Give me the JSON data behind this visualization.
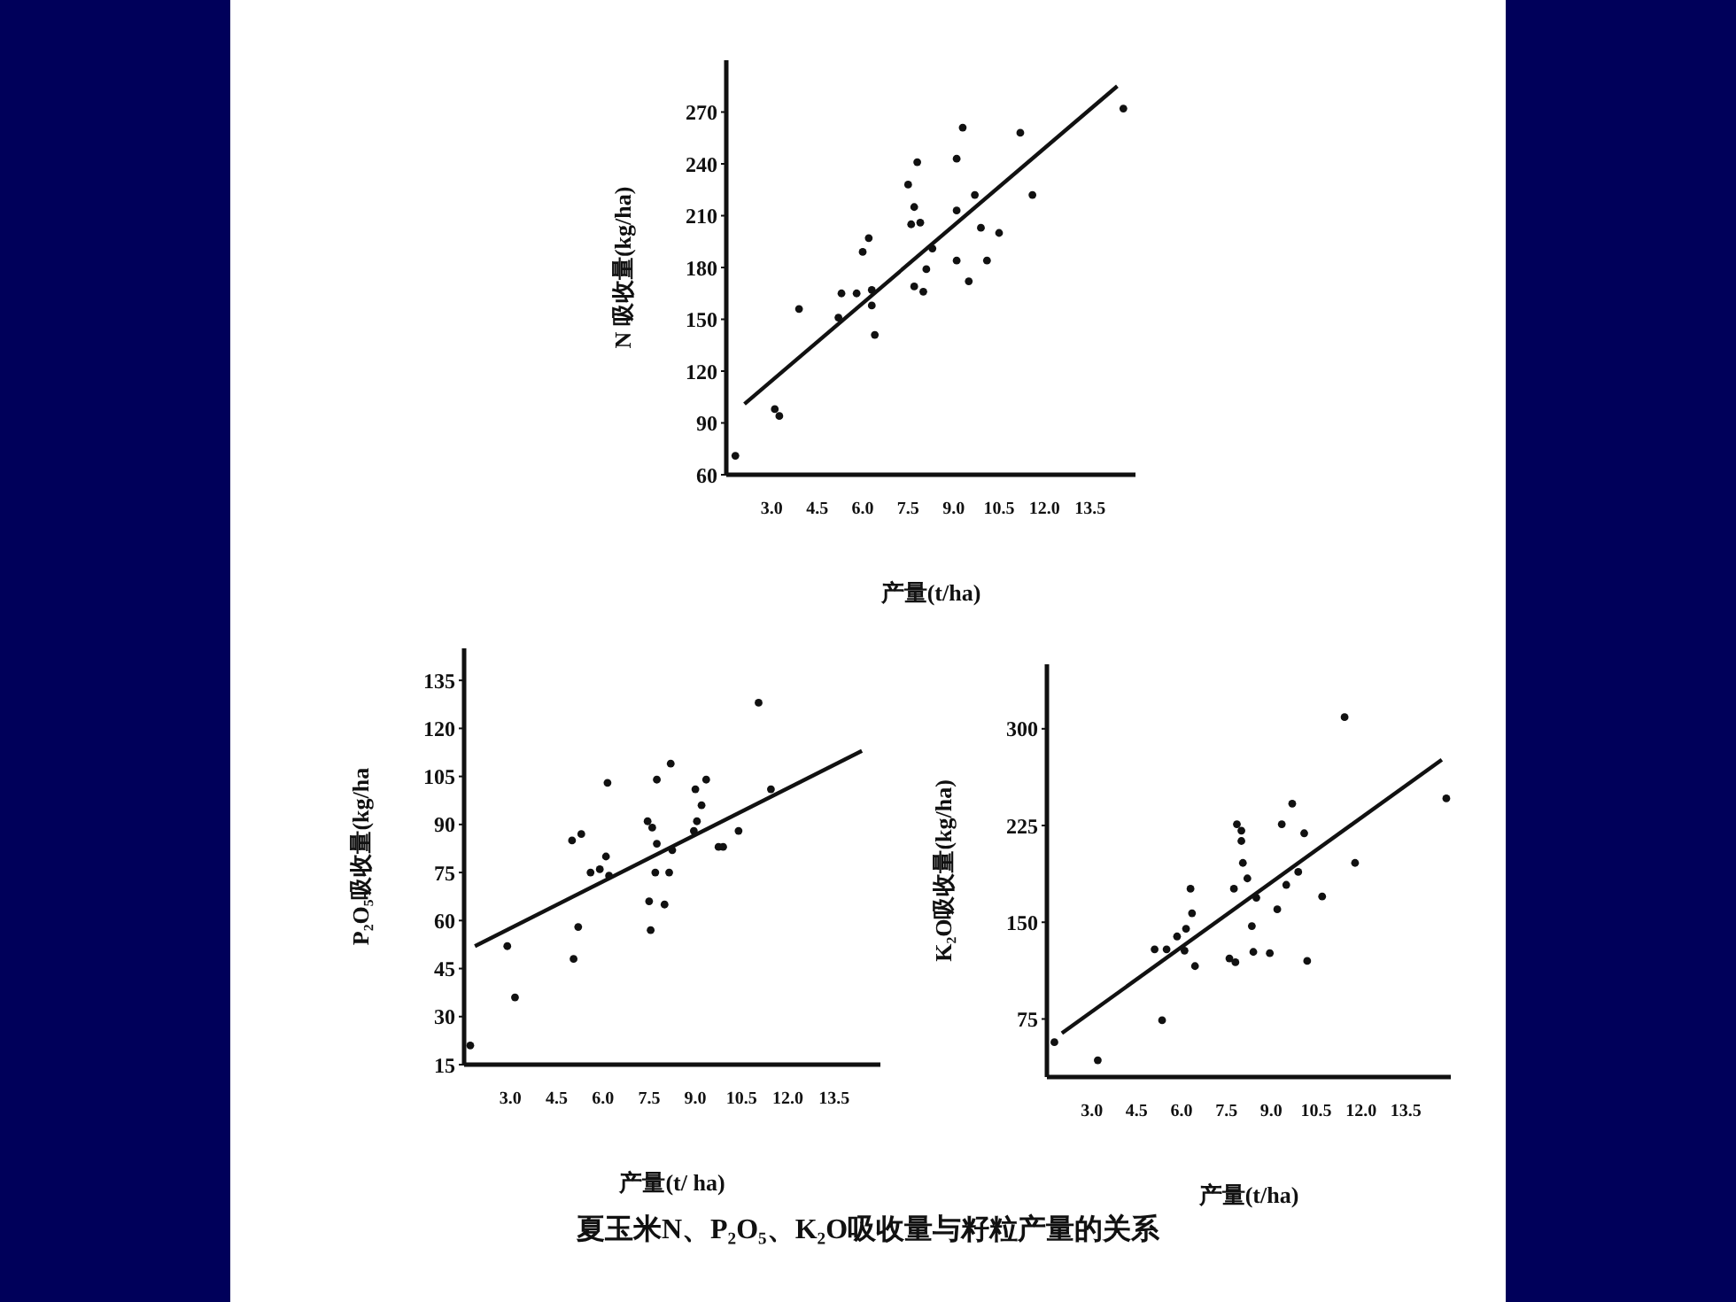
{
  "chart_data": [
    {
      "type": "scatter",
      "ylabel": "N 吸收量(kg/ha)",
      "xlabel": "产量(t/ha)",
      "xlim": [
        1.5,
        15
      ],
      "xticks": [
        {
          "value": 3,
          "label": "3.0"
        },
        {
          "value": 4.5,
          "label": "4.5"
        },
        {
          "value": 6,
          "label": "6.0"
        },
        {
          "value": 7.5,
          "label": "7.5"
        },
        {
          "value": 9,
          "label": "9.0"
        },
        {
          "value": 10.5,
          "label": "10.5"
        },
        {
          "value": 12,
          "label": "12.0"
        },
        {
          "value": 13.5,
          "label": "13.5"
        }
      ],
      "ylim": [
        60,
        300
      ],
      "yticks": [
        60,
        90,
        120,
        150,
        180,
        210,
        240,
        270
      ],
      "series": [
        {
          "color": "#111111",
          "marker": "circle",
          "x": [
            1.8,
            3.1,
            3.25,
            3.9,
            5.2,
            5.3,
            5.8,
            6.0,
            6.2,
            6.3,
            6.3,
            6.4,
            7.5,
            7.7,
            7.6,
            7.8,
            7.9,
            7.7,
            8.0,
            8.1,
            8.3,
            9.1,
            9.1,
            9.3,
            9.1,
            9.5,
            9.7,
            9.9,
            10.1,
            10.5,
            11.2,
            11.6,
            14.6
          ],
          "values": [
            71,
            98,
            94,
            156,
            151,
            165,
            165,
            189,
            197,
            167,
            158,
            141,
            228,
            215,
            205,
            241,
            206,
            169,
            166,
            179,
            191,
            213,
            243,
            261,
            184,
            172,
            222,
            203,
            184,
            200,
            258,
            222,
            272
          ]
        },
        {
          "type": "line",
          "marker": "none",
          "color": "#111111",
          "x": [
            2.1,
            14.4
          ],
          "values": [
            101,
            285
          ]
        }
      ]
    },
    {
      "type": "scatter",
      "ylabel": "P₂O₅吸收量(kg/ha",
      "xlabel": "产量(t/ ha)",
      "xlim": [
        1.5,
        15
      ],
      "xticks": [
        {
          "value": 3,
          "label": "3.0"
        },
        {
          "value": 4.5,
          "label": "4.5"
        },
        {
          "value": 6,
          "label": "6.0"
        },
        {
          "value": 7.5,
          "label": "7.5"
        },
        {
          "value": 9,
          "label": "9.0"
        },
        {
          "value": 10.5,
          "label": "10.5"
        },
        {
          "value": 12,
          "label": "12.0"
        },
        {
          "value": 13.5,
          "label": "13.5"
        }
      ],
      "ylim": [
        15,
        145
      ],
      "yticks": [
        15,
        30,
        45,
        60,
        75,
        90,
        105,
        120,
        135
      ],
      "series": [
        {
          "color": "#111111",
          "marker": "circle",
          "x": [
            1.7,
            2.9,
            3.15,
            5.0,
            5.05,
            5.2,
            5.3,
            5.6,
            5.9,
            6.1,
            6.15,
            6.2,
            7.45,
            7.6,
            7.5,
            7.55,
            7.75,
            7.75,
            7.7,
            8.0,
            8.15,
            8.2,
            8.25,
            9.0,
            9.05,
            8.95,
            9.2,
            9.35,
            9.75,
            9.9,
            10.4,
            11.05,
            11.45
          ],
          "values": [
            21,
            52,
            36,
            85,
            48,
            58,
            87,
            75,
            76,
            80,
            103,
            74,
            91,
            89,
            66,
            57,
            104,
            84,
            75,
            65,
            75,
            109,
            82,
            101,
            91,
            88,
            96,
            104,
            83,
            83,
            88,
            128,
            101
          ]
        },
        {
          "type": "line",
          "marker": "none",
          "color": "#111111",
          "x": [
            1.85,
            14.4
          ],
          "values": [
            52,
            113
          ]
        }
      ]
    },
    {
      "type": "scatter",
      "ylabel": "K₂O吸收量(kg/ha)",
      "xlabel": "产量(t/ha)",
      "xlim": [
        1.5,
        15
      ],
      "xticks": [
        {
          "value": 3,
          "label": "3.0"
        },
        {
          "value": 4.5,
          "label": "4.5"
        },
        {
          "value": 6,
          "label": "6.0"
        },
        {
          "value": 7.5,
          "label": "7.5"
        },
        {
          "value": 9,
          "label": "9.0"
        },
        {
          "value": 10.5,
          "label": "10.5"
        },
        {
          "value": 12,
          "label": "12.0"
        },
        {
          "value": 13.5,
          "label": "13.5"
        }
      ],
      "ylim": [
        30,
        350
      ],
      "yticks": [
        75,
        150,
        225,
        300
      ],
      "annotations": [
        "夏玉米N、P₂O₅、K₂O吸收量与籽粒产量的关系"
      ],
      "series": [
        {
          "color": "#111111",
          "marker": "circle",
          "x": [
            1.75,
            3.2,
            5.1,
            5.35,
            5.5,
            5.85,
            6.1,
            6.15,
            6.3,
            6.35,
            6.45,
            7.6,
            7.8,
            7.75,
            7.85,
            8.0,
            8.0,
            8.05,
            8.2,
            8.35,
            8.4,
            8.5,
            8.95,
            9.2,
            9.35,
            9.5,
            9.7,
            9.9,
            10.1,
            10.2,
            10.7,
            11.45,
            11.8,
            14.85
          ],
          "values": [
            57,
            43,
            129,
            74,
            129,
            139,
            128,
            145,
            176,
            157,
            116,
            122,
            119,
            176,
            226,
            221,
            213,
            196,
            184,
            147,
            127,
            169,
            126,
            160,
            226,
            179,
            242,
            189,
            219,
            120,
            170,
            309,
            196,
            246
          ]
        },
        {
          "type": "line",
          "marker": "none",
          "color": "#111111",
          "x": [
            2.0,
            14.7
          ],
          "values": [
            64,
            276
          ]
        }
      ]
    }
  ]
}
